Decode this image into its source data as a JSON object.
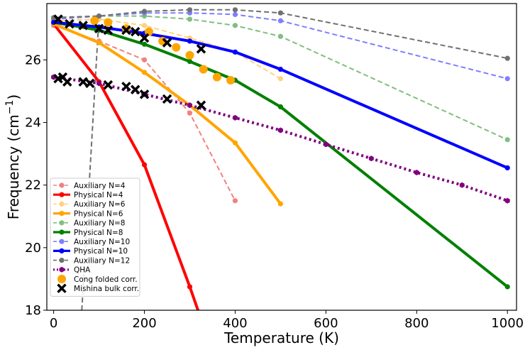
{
  "chart_data": {
    "type": "line",
    "xlabel": "Temperature (K)",
    "ylabel_main": "Frequency (cm",
    "ylabel_sup": "−1",
    "ylabel_end": ")",
    "xlim": [
      -15,
      1020
    ],
    "ylim": [
      18,
      27.8
    ],
    "xticks": [
      0,
      200,
      400,
      600,
      800,
      1000
    ],
    "yticks": [
      18,
      20,
      22,
      24,
      26
    ],
    "grid": false,
    "legend_position": "lower-left",
    "series": [
      {
        "name": "Auxiliary N=4",
        "color": "#f28080",
        "style": "dashed",
        "width": 2,
        "marker": "circle",
        "x": [
          0,
          100,
          200,
          300,
          400
        ],
        "y": [
          27.1,
          26.6,
          26.0,
          24.3,
          21.5
        ]
      },
      {
        "name": "Physical N=4",
        "color": "#ff0000",
        "style": "solid",
        "width": 4,
        "marker": "circle",
        "x": [
          0,
          100,
          200,
          300,
          330
        ],
        "y": [
          27.15,
          25.3,
          22.65,
          18.75,
          17.5
        ]
      },
      {
        "name": "Auxiliary N=6",
        "color": "#ffd27f",
        "style": "dashed",
        "width": 2,
        "marker": "circle",
        "x": [
          0,
          100,
          200,
          300,
          400,
          500
        ],
        "y": [
          27.25,
          27.3,
          27.1,
          26.7,
          26.25,
          25.4
        ]
      },
      {
        "name": "Physical N=6",
        "color": "#ffa500",
        "style": "solid",
        "width": 4,
        "marker": "circle",
        "x": [
          0,
          100,
          200,
          300,
          400,
          500
        ],
        "y": [
          27.15,
          26.55,
          25.6,
          24.55,
          23.35,
          21.4
        ]
      },
      {
        "name": "Auxiliary N=8",
        "color": "#7fbf7f",
        "style": "dashed",
        "width": 2,
        "marker": "circle",
        "x": [
          0,
          100,
          200,
          300,
          400,
          500,
          1000
        ],
        "y": [
          27.3,
          27.4,
          27.4,
          27.3,
          27.1,
          26.75,
          23.45
        ]
      },
      {
        "name": "Physical N=8",
        "color": "#008000",
        "style": "solid",
        "width": 4,
        "marker": "circle",
        "x": [
          0,
          100,
          200,
          300,
          400,
          500,
          1000
        ],
        "y": [
          27.2,
          26.95,
          26.5,
          25.95,
          25.35,
          24.5,
          18.75
        ]
      },
      {
        "name": "Auxiliary N=10",
        "color": "#7f7fff",
        "style": "dashed",
        "width": 2,
        "marker": "circle",
        "x": [
          0,
          100,
          200,
          300,
          400,
          500,
          1000
        ],
        "y": [
          27.3,
          27.4,
          27.5,
          27.5,
          27.45,
          27.25,
          25.4
        ]
      },
      {
        "name": "Physical N=10",
        "color": "#0000ff",
        "style": "solid",
        "width": 4,
        "marker": "circle",
        "x": [
          0,
          100,
          200,
          300,
          400,
          500,
          1000
        ],
        "y": [
          27.2,
          27.05,
          26.85,
          26.6,
          26.25,
          25.7,
          22.55
        ]
      },
      {
        "name": "Auxiliary N=12",
        "color": "#707070",
        "style": "dashed",
        "width": 2,
        "marker": "circle",
        "x": [
          0,
          100,
          200,
          300,
          400,
          500,
          1000
        ],
        "y": [
          27.35,
          27.4,
          27.55,
          27.6,
          27.6,
          27.5,
          26.05
        ]
      },
      {
        "name": "QHA",
        "color": "#800080",
        "style": "dotted",
        "width": 4,
        "marker": "hexagon",
        "x": [
          0,
          100,
          200,
          300,
          400,
          500,
          600,
          700,
          800,
          900,
          1000
        ],
        "y": [
          25.45,
          25.25,
          24.9,
          24.55,
          24.15,
          23.75,
          23.3,
          22.85,
          22.4,
          22.0,
          21.5
        ]
      },
      {
        "name": "Cong folded corr.",
        "color": "#ffa500",
        "style": "none",
        "width": 0,
        "marker": "big-circle",
        "x": [
          90,
          120,
          160,
          210,
          240,
          270,
          300,
          330,
          360,
          390
        ],
        "y": [
          27.25,
          27.2,
          27.0,
          26.9,
          26.6,
          26.4,
          26.15,
          25.7,
          25.45,
          25.35
        ]
      },
      {
        "name": "Mishina bulk corr.",
        "color": "#000000",
        "style": "none",
        "width": 0,
        "marker": "x",
        "x": [
          10,
          20,
          30,
          65,
          80,
          120,
          160,
          180,
          200,
          250,
          325
        ],
        "y": [
          25.4,
          25.45,
          25.3,
          25.3,
          25.25,
          25.2,
          25.15,
          25.05,
          24.9,
          24.75,
          24.55
        ],
        "x2": [
          10,
          35,
          65,
          100,
          120,
          160,
          180,
          200,
          250,
          325
        ],
        "y2": [
          27.3,
          27.15,
          27.1,
          27.0,
          26.95,
          26.95,
          26.9,
          26.7,
          26.55,
          26.35
        ]
      }
    ],
    "aux12_drop": {
      "x": [
        60,
        100
      ],
      "y": [
        17.5,
        27.4
      ]
    }
  }
}
